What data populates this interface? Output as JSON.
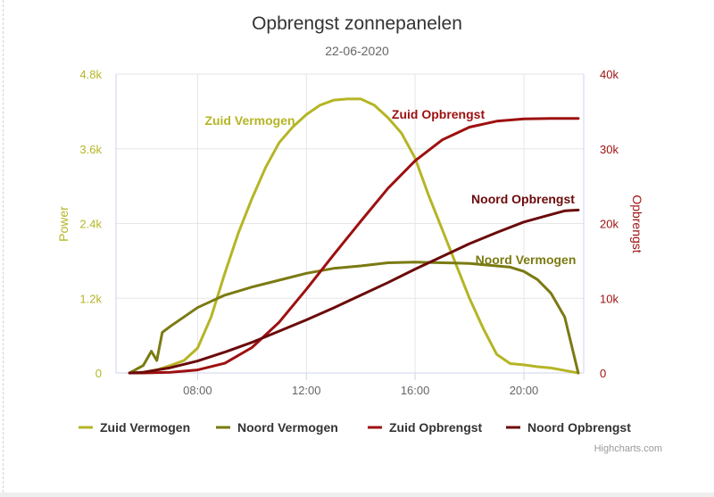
{
  "colors": {
    "zuid_vermogen": "#b5b526",
    "noord_vermogen": "#7a7a12",
    "zuid_opbrengst": "#9e1010",
    "noord_opbrengst": "#6b0a0a",
    "grid": "#e6e6e6",
    "axis_line": "#ccd6eb"
  },
  "credits": "Highcharts.com",
  "chart_data": {
    "type": "line",
    "title": "Opbrengst zonnepanelen",
    "subtitle": "22-06-2020",
    "xaxis": {
      "unit": "hour",
      "range": [
        5.0,
        22.2
      ],
      "ticks": [
        8,
        12,
        16,
        20
      ],
      "tick_labels": [
        "08:00",
        "12:00",
        "16:00",
        "20:00"
      ]
    },
    "yaxis_left": {
      "title": "Power",
      "range": [
        0,
        4800
      ],
      "ticks": [
        0,
        1200,
        2400,
        3600,
        4800
      ],
      "tick_labels": [
        "0",
        "1.2k",
        "2.4k",
        "3.6k",
        "4.8k"
      ]
    },
    "yaxis_right": {
      "title": "Opbrengst",
      "range": [
        0,
        40000
      ],
      "ticks": [
        0,
        10000,
        20000,
        30000,
        40000
      ],
      "tick_labels": [
        "0",
        "10k",
        "20k",
        "30k",
        "40k"
      ]
    },
    "series": [
      {
        "name": "Zuid Vermogen",
        "axis": "left",
        "label": "Zuid Vermogen",
        "x": [
          5.7,
          6.0,
          6.5,
          7.0,
          7.5,
          8.0,
          8.5,
          9.0,
          9.5,
          10.0,
          10.5,
          11.0,
          11.5,
          12.0,
          12.5,
          13.0,
          13.5,
          14.0,
          14.5,
          15.0,
          15.5,
          16.0,
          16.5,
          17.0,
          17.5,
          18.0,
          18.5,
          19.0,
          19.5,
          20.0,
          20.5,
          21.0,
          21.5,
          22.0
        ],
        "values": [
          0,
          10,
          50,
          120,
          200,
          400,
          900,
          1600,
          2250,
          2800,
          3300,
          3700,
          3950,
          4150,
          4300,
          4380,
          4400,
          4400,
          4300,
          4100,
          3850,
          3450,
          2850,
          2300,
          1750,
          1200,
          720,
          300,
          150,
          130,
          100,
          80,
          40,
          0
        ]
      },
      {
        "name": "Noord Vermogen",
        "axis": "left",
        "label": "Noord Vermogen",
        "x": [
          5.5,
          6.0,
          6.3,
          6.5,
          6.7,
          7.0,
          7.5,
          8.0,
          8.5,
          9.0,
          10.0,
          11.0,
          12.0,
          13.0,
          14.0,
          15.0,
          16.0,
          17.0,
          18.0,
          18.5,
          19.0,
          19.5,
          20.0,
          20.5,
          21.0,
          21.5,
          22.0
        ],
        "values": [
          0,
          120,
          350,
          200,
          650,
          750,
          900,
          1050,
          1150,
          1250,
          1380,
          1490,
          1600,
          1680,
          1720,
          1770,
          1780,
          1770,
          1760,
          1740,
          1720,
          1700,
          1630,
          1500,
          1280,
          900,
          0
        ]
      },
      {
        "name": "Zuid Opbrengst",
        "axis": "right",
        "label": "Zuid Opbrengst",
        "x": [
          5.5,
          6.0,
          7.0,
          8.0,
          9.0,
          10.0,
          11.0,
          12.0,
          13.0,
          14.0,
          15.0,
          16.0,
          17.0,
          18.0,
          19.0,
          20.0,
          21.0,
          22.0
        ],
        "values": [
          0,
          0,
          100,
          400,
          1300,
          3400,
          6800,
          11200,
          15800,
          20300,
          24700,
          28400,
          31200,
          32900,
          33700,
          34000,
          34050,
          34050
        ]
      },
      {
        "name": "Noord Opbrengst",
        "axis": "right",
        "label": "Noord Opbrengst",
        "x": [
          5.5,
          6.0,
          7.0,
          8.0,
          9.0,
          10.0,
          11.0,
          12.0,
          13.0,
          14.0,
          15.0,
          16.0,
          17.0,
          18.0,
          19.0,
          20.0,
          21.0,
          21.5,
          22.0
        ],
        "values": [
          0,
          100,
          700,
          1600,
          2800,
          4100,
          5600,
          7100,
          8700,
          10400,
          12100,
          13900,
          15600,
          17300,
          18800,
          20200,
          21200,
          21700,
          21800
        ]
      }
    ],
    "legend": {
      "position": "bottom",
      "items": [
        "Zuid Vermogen",
        "Noord Vermogen",
        "Zuid Opbrengst",
        "Noord Opbrengst"
      ]
    }
  }
}
